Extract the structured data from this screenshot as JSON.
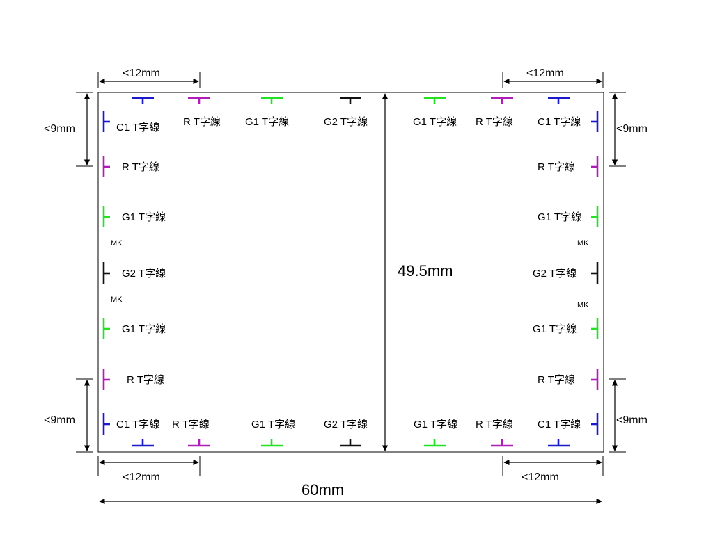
{
  "colors": {
    "C1": "#1a1acc",
    "R": "#b01cb8",
    "G1": "#22e222",
    "G2": "#111111",
    "outline": "#000000"
  },
  "labels": {
    "C1": "C1 T字線",
    "R": "R  T字線",
    "G1": "G1 T字線",
    "G2": "G2 T字線",
    "mk": "MK"
  },
  "dimensions": {
    "width_12_top_left": "<12mm",
    "width_12_top_right": "<12mm",
    "width_12_bottom_left": "<12mm",
    "width_12_bottom_right": "<12mm",
    "height_9_left_top": "<9mm",
    "height_9_right_top": "<9mm",
    "height_9_left_bottom": "<9mm",
    "height_9_right_bottom": "<9mm",
    "height_total": "49.5mm",
    "width_total": "60mm"
  }
}
